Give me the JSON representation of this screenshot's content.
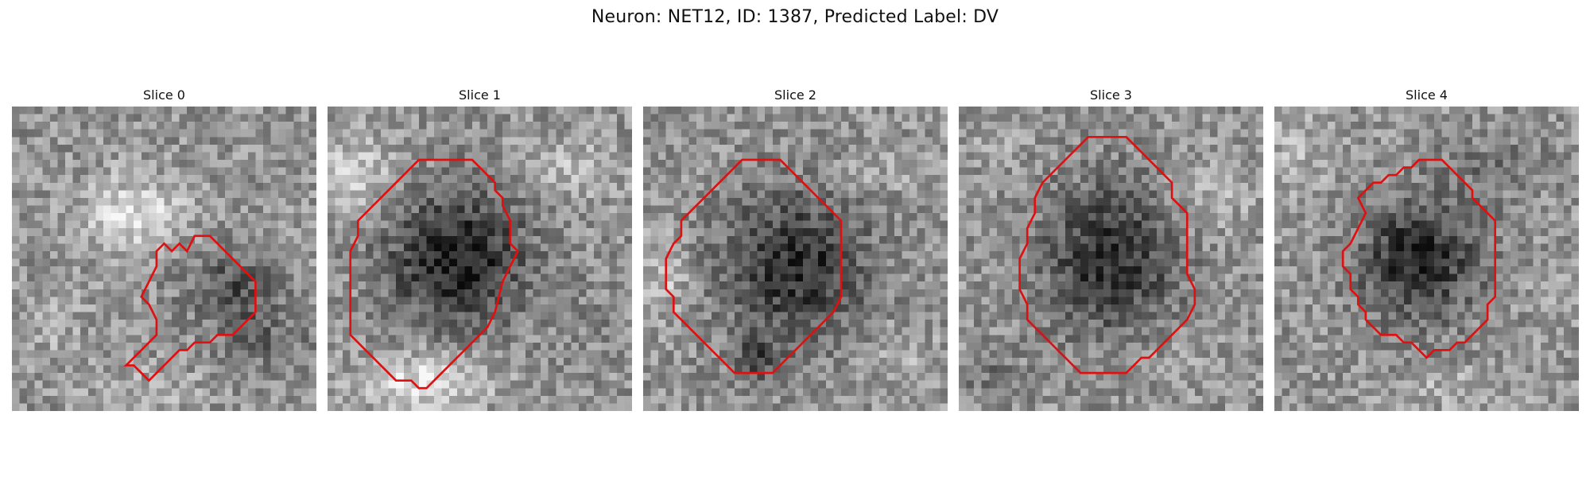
{
  "figure": {
    "title": "Neuron: NET12, ID: 1387, Predicted Label: DV"
  },
  "colors": {
    "contour": "#e01010",
    "background": "#ffffff"
  },
  "panels": [
    {
      "label": "Slice 0"
    },
    {
      "label": "Slice 1"
    },
    {
      "label": "Slice 2"
    },
    {
      "label": "Slice 3"
    },
    {
      "label": "Slice 4"
    }
  ]
}
